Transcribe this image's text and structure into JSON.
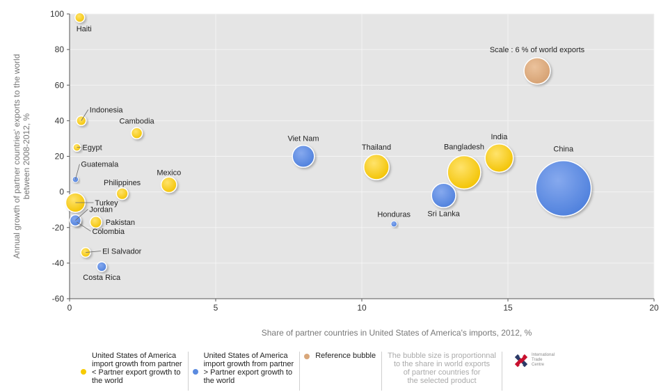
{
  "chart_data": {
    "type": "scatter",
    "subtype": "bubble",
    "xlabel": "Share of partner countries in United States of America's imports, 2012, %",
    "ylabel": "Annual growth of partner countries' exports to the world between 2008-2012, %",
    "xlim": [
      0,
      20
    ],
    "ylim": [
      -60,
      100
    ],
    "xticks": [
      0,
      5,
      10,
      15,
      20
    ],
    "yticks": [
      -60,
      -40,
      -20,
      0,
      20,
      40,
      60,
      80,
      100
    ],
    "grid": true,
    "legend_position": "bottom",
    "colors": {
      "yellow": "#f7cb00",
      "blue": "#5b8be0",
      "reference": "#d9a77a",
      "plot_bg": "#e5e5e5"
    },
    "series": [
      {
        "name": "United States of America import growth from partner < Partner export growth to the world",
        "color": "#f7cb00",
        "points": [
          {
            "label": "Haiti",
            "x": 0.35,
            "y": 98,
            "size": 0.1
          },
          {
            "label": "Indonesia",
            "x": 0.4,
            "y": 40,
            "size": 0.1
          },
          {
            "label": "Cambodia",
            "x": 2.3,
            "y": 33,
            "size": 0.15
          },
          {
            "label": "Egypt",
            "x": 0.25,
            "y": 25,
            "size": 0.05
          },
          {
            "label": "Mexico",
            "x": 3.4,
            "y": 4,
            "size": 0.35
          },
          {
            "label": "Philippines",
            "x": 1.8,
            "y": -1,
            "size": 0.17
          },
          {
            "label": "Turkey",
            "x": 0.2,
            "y": -6,
            "size": 0.6
          },
          {
            "label": "Pakistan",
            "x": 0.9,
            "y": -17,
            "size": 0.17
          },
          {
            "label": "Colombia",
            "x": 0.25,
            "y": -17,
            "size": 0.05
          },
          {
            "label": "El Salvador",
            "x": 0.55,
            "y": -34,
            "size": 0.1
          },
          {
            "label": "Thailand",
            "x": 10.5,
            "y": 14,
            "size": 1.1
          },
          {
            "label": "Bangladesh",
            "x": 13.5,
            "y": 11,
            "size": 2.0
          },
          {
            "label": "India",
            "x": 14.7,
            "y": 19,
            "size": 1.4
          }
        ]
      },
      {
        "name": "United States of America import growth from partner > Partner export growth to the world",
        "color": "#5b8be0",
        "points": [
          {
            "label": "Guatemala",
            "x": 0.2,
            "y": 7,
            "size": 0.02
          },
          {
            "label": "Jordan",
            "x": 0.2,
            "y": -16,
            "size": 0.15
          },
          {
            "label": "Costa Rica",
            "x": 1.1,
            "y": -42,
            "size": 0.1
          },
          {
            "label": "Viet Nam",
            "x": 8.0,
            "y": 20,
            "size": 0.8
          },
          {
            "label": "Honduras",
            "x": 11.1,
            "y": -18,
            "size": 0.02
          },
          {
            "label": "Sri Lanka",
            "x": 12.8,
            "y": -2,
            "size": 1.0
          },
          {
            "label": "China",
            "x": 16.9,
            "y": 2,
            "size": 6.0
          }
        ]
      },
      {
        "name": "Reference bubble",
        "color": "#d9a77a",
        "points": [
          {
            "label": "Scale : 6 % of world exports",
            "x": 16.0,
            "y": 68,
            "size": 1.2
          }
        ]
      }
    ],
    "note": "The bubble size is proportionnal to the share in world exports of partner countries for the selected product"
  },
  "legend": {
    "item_below": "United States of America\nimport growth from partner\n< Partner export growth to\nthe world",
    "item_above": "United States of America\nimport growth from partner\n> Partner export growth to\nthe world",
    "item_reference": "Reference bubble",
    "note": "The bubble size is proportionnal\nto the share in world exports\nof partner countries for\nthe selected product",
    "logo_text": "International\nTrade\nCentre"
  }
}
